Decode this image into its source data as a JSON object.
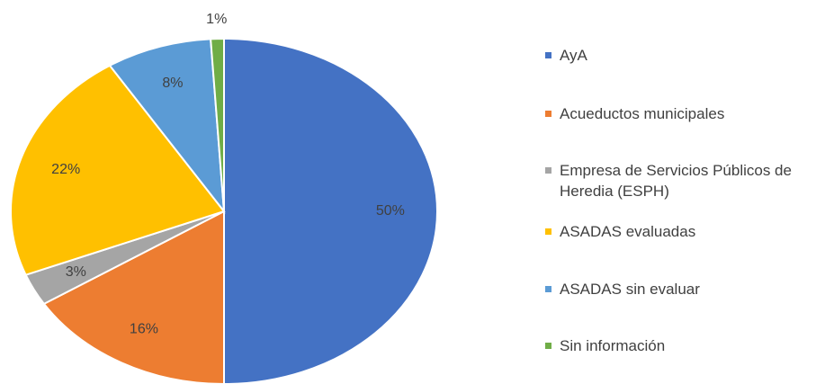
{
  "chart_data": {
    "type": "pie",
    "categories": [
      "AyA",
      "Acueductos municipales",
      "Empresa de Servicios Públicos de Heredia (ESPH)",
      "ASADAS evaluadas",
      "ASADAS sin evaluar",
      "Sin información"
    ],
    "values": [
      50,
      16,
      3,
      22,
      8,
      1
    ],
    "value_labels": [
      "50%",
      "16%",
      "3%",
      "22%",
      "8%",
      "1%"
    ],
    "colors": [
      "#4472c4",
      "#ed7d31",
      "#a5a5a5",
      "#ffc000",
      "#5b9bd5",
      "#70ad47"
    ],
    "legend": "right"
  }
}
